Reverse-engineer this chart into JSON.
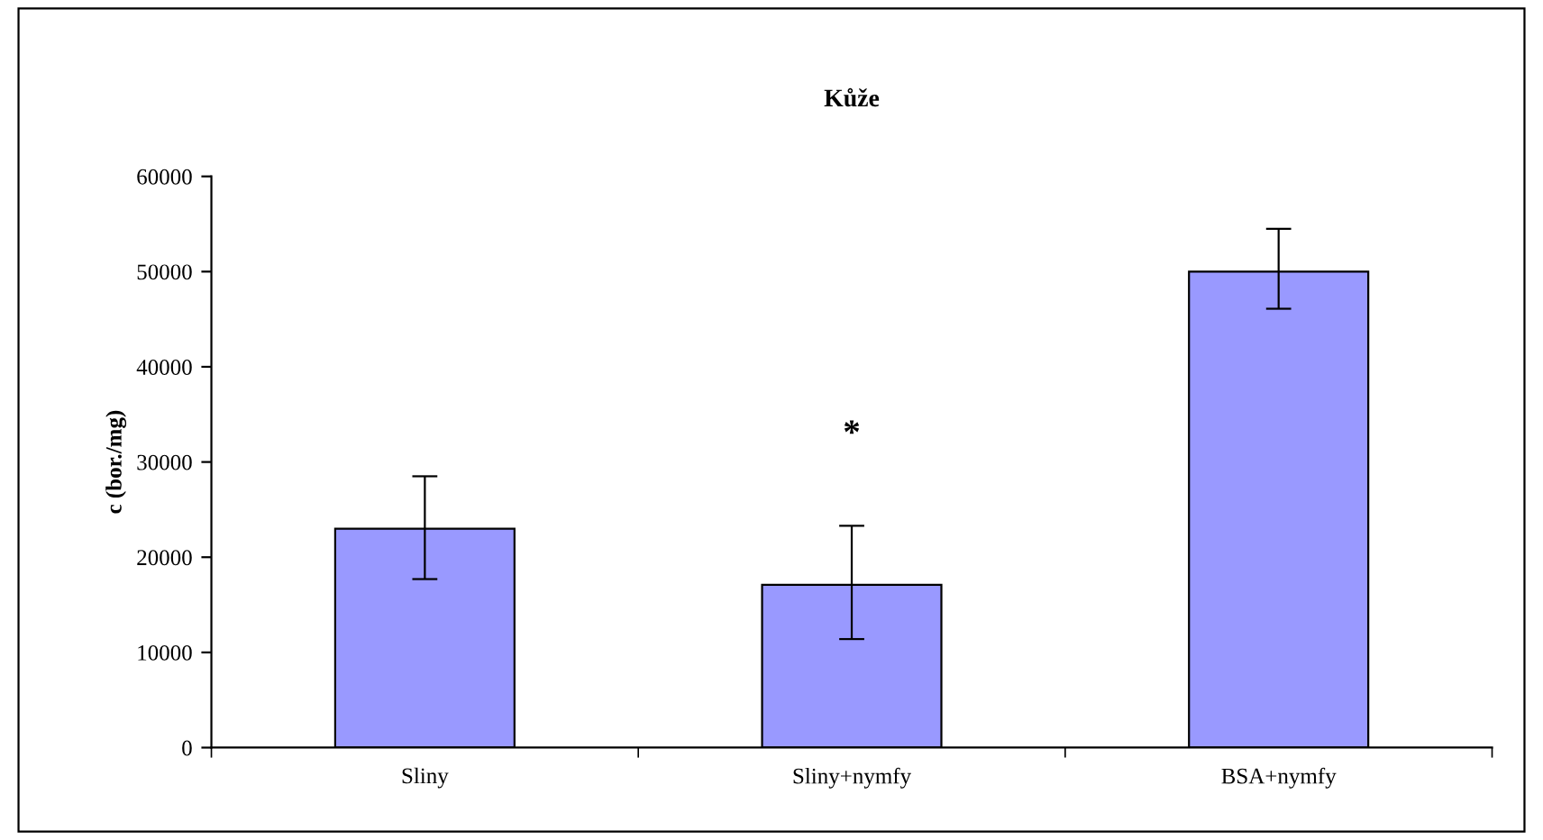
{
  "chart_data": {
    "type": "bar",
    "title": "Kůže",
    "ylabel": "c (bor./mg)",
    "categories": [
      "Sliny",
      "Sliny+nymfy",
      "BSA+nymfy"
    ],
    "values": [
      23000,
      17100,
      50000
    ],
    "errors": [
      [
        17700,
        28500
      ],
      [
        11400,
        23300
      ],
      [
        46100,
        54500
      ]
    ],
    "color": "#9999ff",
    "ylim": [
      0,
      60000
    ],
    "yticks": [
      0,
      10000,
      20000,
      30000,
      40000,
      50000,
      60000
    ],
    "grid": false,
    "annotations": [
      "*"
    ]
  }
}
